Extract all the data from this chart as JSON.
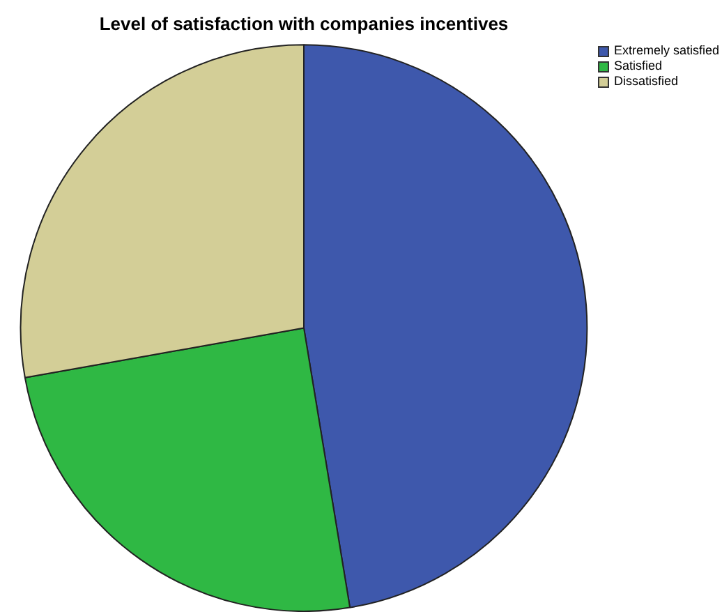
{
  "chart_data": {
    "type": "pie",
    "title": "Level of satisfaction with companies incentives",
    "categories": [
      "Extremely satisfied",
      "Satisfied",
      "Dissatisfied"
    ],
    "values": [
      47.4,
      24.8,
      27.8
    ],
    "colors": [
      "#3e58ac",
      "#2fb844",
      "#d3ce97"
    ],
    "legend": "top right"
  }
}
